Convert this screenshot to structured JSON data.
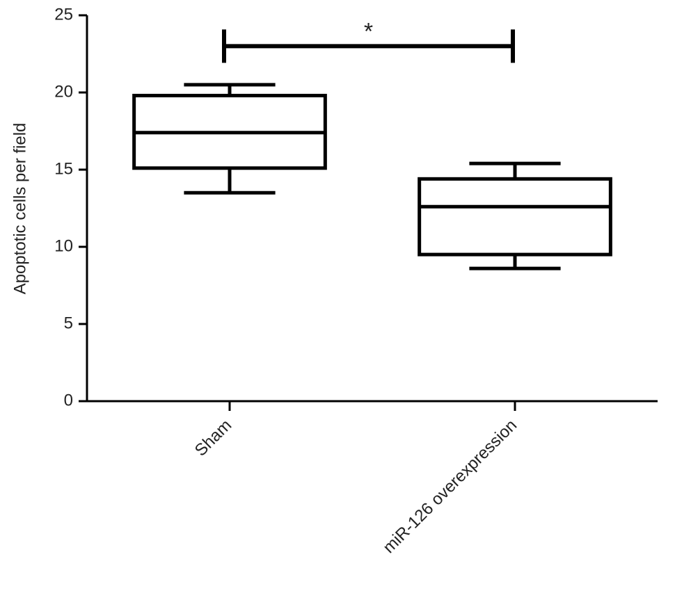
{
  "chart_data": {
    "type": "box",
    "y_label": "Apoptotic cells per field",
    "categories": [
      "Sham",
      "miR-126 overexpression"
    ],
    "boxes": [
      {
        "whislo": 13.5,
        "q1": 15.1,
        "med": 17.4,
        "q3": 19.8,
        "whishi": 20.5
      },
      {
        "whislo": 8.6,
        "q1": 9.5,
        "med": 12.6,
        "q3": 14.4,
        "whishi": 15.4
      }
    ],
    "color": "#000000",
    "ylim": [
      0,
      25
    ],
    "yticks": [
      0,
      5,
      10,
      15,
      20,
      25
    ],
    "significance": {
      "label": "*",
      "y": 23
    }
  }
}
